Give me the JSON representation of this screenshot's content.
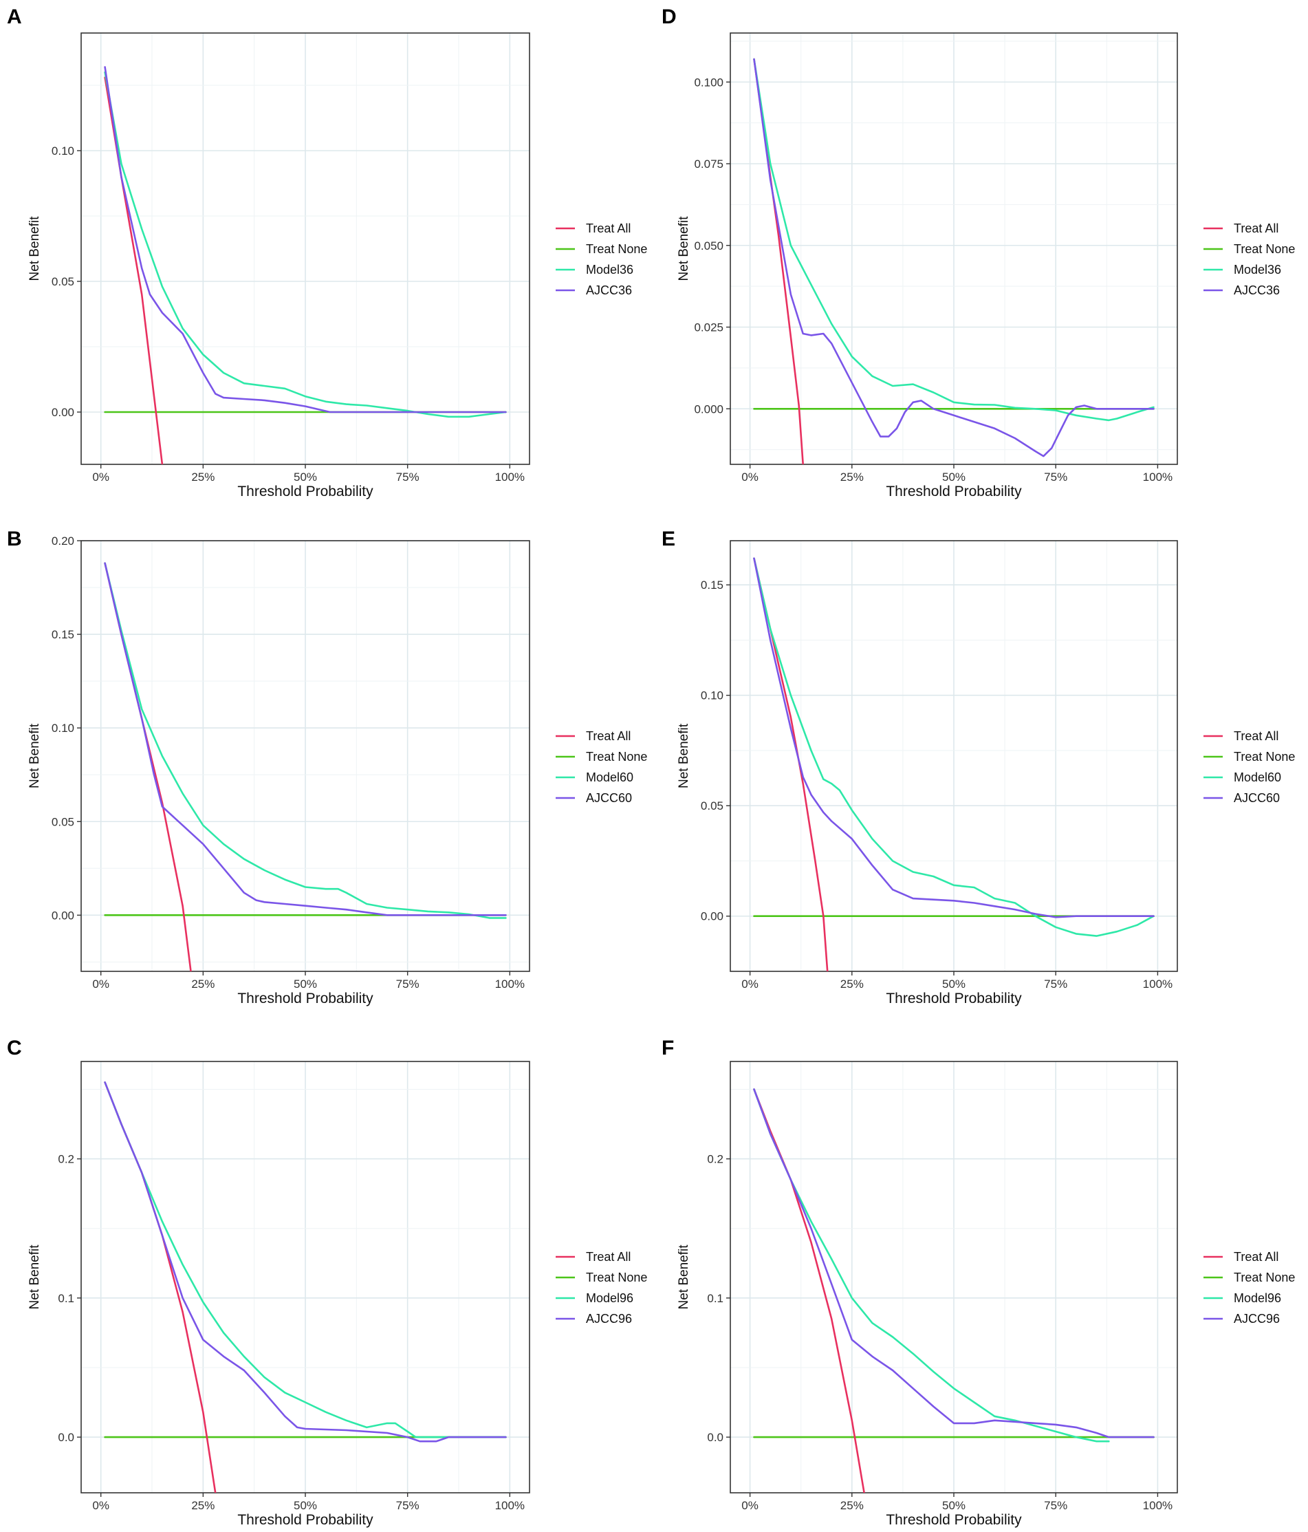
{
  "figure": {
    "colors": {
      "Treat All": "#e8305f",
      "Treat None": "#4cc519",
      "Model": "#2ee8a8",
      "AJCC": "#7a55e8"
    }
  },
  "chart_data": [
    {
      "type": "line",
      "panel": "A",
      "xlabel": "Threshold Probability",
      "ylabel": "Net Benefit",
      "xlim": [
        0,
        1
      ],
      "ylim": [
        -0.02,
        0.145
      ],
      "xticks": [
        "0%",
        "25%",
        "50%",
        "75%",
        "100%"
      ],
      "yticks": [
        "0.00",
        "0.05",
        "0.10"
      ],
      "legend": [
        "Treat All",
        "Treat None",
        "Model36",
        "AJCC36"
      ],
      "series": [
        {
          "name": "Treat All",
          "x": [
            0.01,
            0.05,
            0.1,
            0.15
          ],
          "y": [
            0.128,
            0.09,
            0.045,
            -0.02
          ]
        },
        {
          "name": "Treat None",
          "x": [
            0.01,
            0.99
          ],
          "y": [
            0.0,
            0.0
          ]
        },
        {
          "name": "Model36",
          "x": [
            0.01,
            0.05,
            0.1,
            0.15,
            0.2,
            0.25,
            0.3,
            0.35,
            0.4,
            0.45,
            0.5,
            0.55,
            0.6,
            0.65,
            0.7,
            0.75,
            0.8,
            0.85,
            0.9,
            0.95,
            0.99
          ],
          "y": [
            0.13,
            0.095,
            0.07,
            0.048,
            0.032,
            0.022,
            0.015,
            0.011,
            0.01,
            0.009,
            0.006,
            0.004,
            0.003,
            0.0025,
            0.0015,
            0.0005,
            -0.0008,
            -0.0018,
            -0.0018,
            -0.0008,
            0.0
          ]
        },
        {
          "name": "AJCC36",
          "x": [
            0.01,
            0.05,
            0.1,
            0.12,
            0.15,
            0.2,
            0.25,
            0.28,
            0.3,
            0.35,
            0.4,
            0.45,
            0.5,
            0.56,
            0.6,
            0.7,
            0.8,
            0.9,
            0.99
          ],
          "y": [
            0.132,
            0.09,
            0.055,
            0.045,
            0.038,
            0.03,
            0.015,
            0.007,
            0.0055,
            0.005,
            0.0045,
            0.0035,
            0.0022,
            0.0,
            0.0,
            0.0,
            0.0,
            0.0,
            0.0
          ]
        }
      ]
    },
    {
      "type": "line",
      "panel": "B",
      "xlabel": "Threshold Probability",
      "ylabel": "Net Benefit",
      "xlim": [
        0,
        1
      ],
      "ylim": [
        -0.03,
        0.2
      ],
      "xticks": [
        "0%",
        "25%",
        "50%",
        "75%",
        "100%"
      ],
      "yticks": [
        "0.00",
        "0.05",
        "0.10",
        "0.15",
        "0.20"
      ],
      "legend": [
        "Treat All",
        "Treat None",
        "Model60",
        "AJCC60"
      ],
      "series": [
        {
          "name": "Treat All",
          "x": [
            0.01,
            0.05,
            0.1,
            0.15,
            0.2,
            0.22
          ],
          "y": [
            0.188,
            0.15,
            0.105,
            0.06,
            0.005,
            -0.03
          ]
        },
        {
          "name": "Treat None",
          "x": [
            0.01,
            0.99
          ],
          "y": [
            0.0,
            0.0
          ]
        },
        {
          "name": "Model60",
          "x": [
            0.01,
            0.05,
            0.1,
            0.15,
            0.2,
            0.25,
            0.3,
            0.35,
            0.4,
            0.45,
            0.5,
            0.55,
            0.58,
            0.6,
            0.65,
            0.7,
            0.75,
            0.8,
            0.85,
            0.9,
            0.95,
            0.99
          ],
          "y": [
            0.188,
            0.152,
            0.11,
            0.085,
            0.065,
            0.048,
            0.038,
            0.03,
            0.024,
            0.019,
            0.015,
            0.014,
            0.014,
            0.012,
            0.006,
            0.004,
            0.003,
            0.002,
            0.0015,
            0.0005,
            -0.0015,
            -0.0015
          ]
        },
        {
          "name": "AJCC60",
          "x": [
            0.01,
            0.05,
            0.1,
            0.13,
            0.15,
            0.2,
            0.25,
            0.3,
            0.35,
            0.38,
            0.4,
            0.45,
            0.5,
            0.55,
            0.6,
            0.65,
            0.7,
            0.75,
            0.8,
            0.9,
            0.99
          ],
          "y": [
            0.188,
            0.15,
            0.105,
            0.075,
            0.058,
            0.048,
            0.038,
            0.025,
            0.012,
            0.008,
            0.007,
            0.006,
            0.005,
            0.004,
            0.003,
            0.0015,
            0.0,
            0.0,
            0.0,
            0.0,
            0.0
          ]
        }
      ]
    },
    {
      "type": "line",
      "panel": "C",
      "xlabel": "Threshold Probability",
      "ylabel": "Net Benefit",
      "xlim": [
        0,
        1
      ],
      "ylim": [
        -0.04,
        0.27
      ],
      "xticks": [
        "0%",
        "25%",
        "50%",
        "75%",
        "100%"
      ],
      "yticks": [
        "0.0",
        "0.1",
        "0.2"
      ],
      "legend": [
        "Treat All",
        "Treat None",
        "Model96",
        "AJCC96"
      ],
      "series": [
        {
          "name": "Treat All",
          "x": [
            0.01,
            0.05,
            0.1,
            0.15,
            0.2,
            0.25,
            0.28
          ],
          "y": [
            0.255,
            0.225,
            0.19,
            0.145,
            0.09,
            0.018,
            -0.04
          ]
        },
        {
          "name": "Treat None",
          "x": [
            0.01,
            0.99
          ],
          "y": [
            0.0,
            0.0
          ]
        },
        {
          "name": "Model96",
          "x": [
            0.01,
            0.05,
            0.1,
            0.15,
            0.2,
            0.25,
            0.3,
            0.35,
            0.4,
            0.45,
            0.5,
            0.55,
            0.6,
            0.65,
            0.7,
            0.72,
            0.75,
            0.77,
            0.8,
            0.9,
            0.99
          ],
          "y": [
            0.255,
            0.225,
            0.19,
            0.155,
            0.124,
            0.097,
            0.075,
            0.058,
            0.043,
            0.032,
            0.025,
            0.018,
            0.012,
            0.007,
            0.01,
            0.01,
            0.004,
            0.0,
            0.0,
            0.0,
            0.0
          ]
        },
        {
          "name": "AJCC96",
          "x": [
            0.01,
            0.05,
            0.1,
            0.15,
            0.2,
            0.25,
            0.3,
            0.35,
            0.4,
            0.45,
            0.48,
            0.5,
            0.6,
            0.7,
            0.75,
            0.78,
            0.82,
            0.85,
            0.9,
            0.99
          ],
          "y": [
            0.255,
            0.225,
            0.19,
            0.145,
            0.1,
            0.07,
            0.058,
            0.048,
            0.032,
            0.015,
            0.007,
            0.006,
            0.005,
            0.003,
            0.0,
            -0.003,
            -0.003,
            0.0,
            0.0,
            0.0
          ]
        }
      ]
    },
    {
      "type": "line",
      "panel": "D",
      "xlabel": "Threshold Probability",
      "ylabel": "Net Benefit",
      "xlim": [
        0,
        1
      ],
      "ylim": [
        -0.017,
        0.115
      ],
      "xticks": [
        "0%",
        "25%",
        "50%",
        "75%",
        "100%"
      ],
      "yticks": [
        "0.000",
        "0.025",
        "0.050",
        "0.075",
        "0.100"
      ],
      "legend": [
        "Treat All",
        "Treat None",
        "Model36",
        "AJCC36"
      ],
      "series": [
        {
          "name": "Treat All",
          "x": [
            0.01,
            0.04,
            0.07,
            0.1,
            0.12,
            0.13
          ],
          "y": [
            0.107,
            0.08,
            0.053,
            0.022,
            0.001,
            -0.017
          ]
        },
        {
          "name": "Treat None",
          "x": [
            0.01,
            0.99
          ],
          "y": [
            0.0,
            0.0
          ]
        },
        {
          "name": "Model36",
          "x": [
            0.01,
            0.05,
            0.1,
            0.15,
            0.2,
            0.25,
            0.3,
            0.35,
            0.4,
            0.45,
            0.5,
            0.55,
            0.6,
            0.65,
            0.7,
            0.75,
            0.8,
            0.85,
            0.88,
            0.9,
            0.95,
            0.99
          ],
          "y": [
            0.107,
            0.075,
            0.05,
            0.038,
            0.026,
            0.016,
            0.01,
            0.007,
            0.0075,
            0.005,
            0.002,
            0.0013,
            0.0012,
            0.0003,
            0.0,
            -0.0005,
            -0.002,
            -0.003,
            -0.0035,
            -0.003,
            -0.001,
            0.0005
          ]
        },
        {
          "name": "AJCC36",
          "x": [
            0.01,
            0.05,
            0.1,
            0.13,
            0.15,
            0.18,
            0.2,
            0.25,
            0.3,
            0.32,
            0.34,
            0.36,
            0.38,
            0.4,
            0.42,
            0.45,
            0.5,
            0.55,
            0.6,
            0.65,
            0.7,
            0.72,
            0.74,
            0.76,
            0.78,
            0.8,
            0.82,
            0.85,
            0.9,
            0.95,
            0.99
          ],
          "y": [
            0.107,
            0.07,
            0.035,
            0.023,
            0.0225,
            0.023,
            0.02,
            0.008,
            -0.004,
            -0.0085,
            -0.0085,
            -0.006,
            -0.001,
            0.002,
            0.0025,
            0.0,
            -0.002,
            -0.004,
            -0.006,
            -0.009,
            -0.013,
            -0.0145,
            -0.012,
            -0.007,
            -0.002,
            0.0005,
            0.001,
            0.0,
            0.0,
            0.0,
            0.0
          ]
        }
      ]
    },
    {
      "type": "line",
      "panel": "E",
      "xlabel": "Threshold Probability",
      "ylabel": "Net Benefit",
      "xlim": [
        0,
        1
      ],
      "ylim": [
        -0.025,
        0.17
      ],
      "xticks": [
        "0%",
        "25%",
        "50%",
        "75%",
        "100%"
      ],
      "yticks": [
        "0.00",
        "0.05",
        "0.10",
        "0.15"
      ],
      "legend": [
        "Treat All",
        "Treat None",
        "Model60",
        "AJCC60"
      ],
      "series": [
        {
          "name": "Treat All",
          "x": [
            0.01,
            0.05,
            0.1,
            0.13,
            0.16,
            0.18,
            0.19
          ],
          "y": [
            0.162,
            0.13,
            0.09,
            0.06,
            0.025,
            0.0,
            -0.025
          ]
        },
        {
          "name": "Treat None",
          "x": [
            0.01,
            0.99
          ],
          "y": [
            0.0,
            0.0
          ]
        },
        {
          "name": "Model60",
          "x": [
            0.01,
            0.05,
            0.1,
            0.15,
            0.18,
            0.2,
            0.22,
            0.25,
            0.3,
            0.35,
            0.4,
            0.45,
            0.5,
            0.55,
            0.6,
            0.65,
            0.7,
            0.75,
            0.8,
            0.85,
            0.9,
            0.95,
            0.99
          ],
          "y": [
            0.162,
            0.13,
            0.1,
            0.075,
            0.062,
            0.06,
            0.057,
            0.048,
            0.035,
            0.025,
            0.02,
            0.018,
            0.014,
            0.013,
            0.008,
            0.006,
            0.0,
            -0.005,
            -0.008,
            -0.009,
            -0.007,
            -0.004,
            0.0
          ]
        },
        {
          "name": "AJCC60",
          "x": [
            0.01,
            0.05,
            0.1,
            0.13,
            0.15,
            0.18,
            0.2,
            0.25,
            0.3,
            0.35,
            0.4,
            0.45,
            0.5,
            0.55,
            0.6,
            0.65,
            0.7,
            0.75,
            0.8,
            0.9,
            0.99
          ],
          "y": [
            0.162,
            0.125,
            0.085,
            0.063,
            0.055,
            0.047,
            0.043,
            0.035,
            0.023,
            0.012,
            0.008,
            0.0075,
            0.007,
            0.006,
            0.0045,
            0.003,
            0.001,
            -0.0005,
            0.0,
            0.0,
            0.0
          ]
        }
      ]
    },
    {
      "type": "line",
      "panel": "F",
      "xlabel": "Threshold Probability",
      "ylabel": "Net Benefit",
      "xlim": [
        0,
        1
      ],
      "ylim": [
        -0.04,
        0.27
      ],
      "xticks": [
        "0%",
        "25%",
        "50%",
        "75%",
        "100%"
      ],
      "yticks": [
        "0.0",
        "0.1",
        "0.2"
      ],
      "legend": [
        "Treat All",
        "Treat None",
        "Model96",
        "AJCC96"
      ],
      "series": [
        {
          "name": "Treat All",
          "x": [
            0.01,
            0.05,
            0.1,
            0.15,
            0.2,
            0.25,
            0.28
          ],
          "y": [
            0.25,
            0.22,
            0.185,
            0.14,
            0.085,
            0.012,
            -0.04
          ]
        },
        {
          "name": "Treat None",
          "x": [
            0.01,
            0.99
          ],
          "y": [
            0.0,
            0.0
          ]
        },
        {
          "name": "Model96",
          "x": [
            0.01,
            0.05,
            0.1,
            0.15,
            0.2,
            0.25,
            0.3,
            0.35,
            0.4,
            0.45,
            0.5,
            0.55,
            0.6,
            0.65,
            0.7,
            0.75,
            0.8,
            0.85,
            0.88
          ],
          "y": [
            0.25,
            0.218,
            0.185,
            0.155,
            0.128,
            0.1,
            0.082,
            0.072,
            0.06,
            0.047,
            0.035,
            0.025,
            0.015,
            0.012,
            0.008,
            0.004,
            0.0,
            -0.003,
            -0.003
          ]
        },
        {
          "name": "AJCC96",
          "x": [
            0.01,
            0.05,
            0.1,
            0.15,
            0.2,
            0.25,
            0.3,
            0.35,
            0.4,
            0.45,
            0.5,
            0.55,
            0.6,
            0.65,
            0.7,
            0.75,
            0.8,
            0.85,
            0.88,
            0.9,
            0.95,
            0.99
          ],
          "y": [
            0.25,
            0.218,
            0.185,
            0.15,
            0.11,
            0.07,
            0.058,
            0.048,
            0.035,
            0.022,
            0.01,
            0.01,
            0.012,
            0.011,
            0.01,
            0.009,
            0.007,
            0.003,
            0.0,
            0.0,
            0.0,
            0.0
          ]
        }
      ]
    }
  ]
}
